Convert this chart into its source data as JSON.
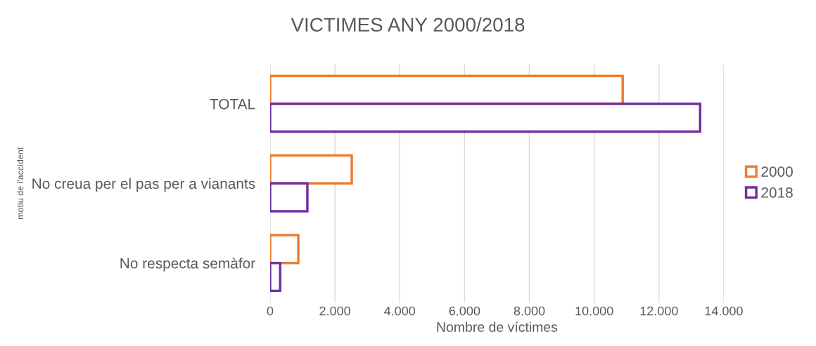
{
  "chart_data": {
    "type": "bar",
    "orientation": "horizontal",
    "title": "VICTIMES ANY 2000/2018",
    "xlabel": "Nombre de víctimes",
    "ylabel": "motiu de l'accident",
    "categories": [
      "TOTAL",
      "No creua per el pas per a vianants",
      "No respecta semàfor"
    ],
    "series": [
      {
        "name": "2000",
        "color": "#ed7d31",
        "values": [
          10880,
          2520,
          870
        ]
      },
      {
        "name": "2018",
        "color": "#7030a0",
        "values": [
          13270,
          1150,
          310
        ]
      }
    ],
    "xlim": [
      0,
      14000
    ],
    "xticks": [
      {
        "value": 0,
        "label": "0"
      },
      {
        "value": 2000,
        "label": "2.000"
      },
      {
        "value": 4000,
        "label": "4.000"
      },
      {
        "value": 6000,
        "label": "6.000"
      },
      {
        "value": 8000,
        "label": "8.000"
      },
      {
        "value": 10000,
        "label": "10.000"
      },
      {
        "value": 12000,
        "label": "12.000"
      },
      {
        "value": 14000,
        "label": "14.000"
      }
    ],
    "grid": "x",
    "legend": "right"
  }
}
